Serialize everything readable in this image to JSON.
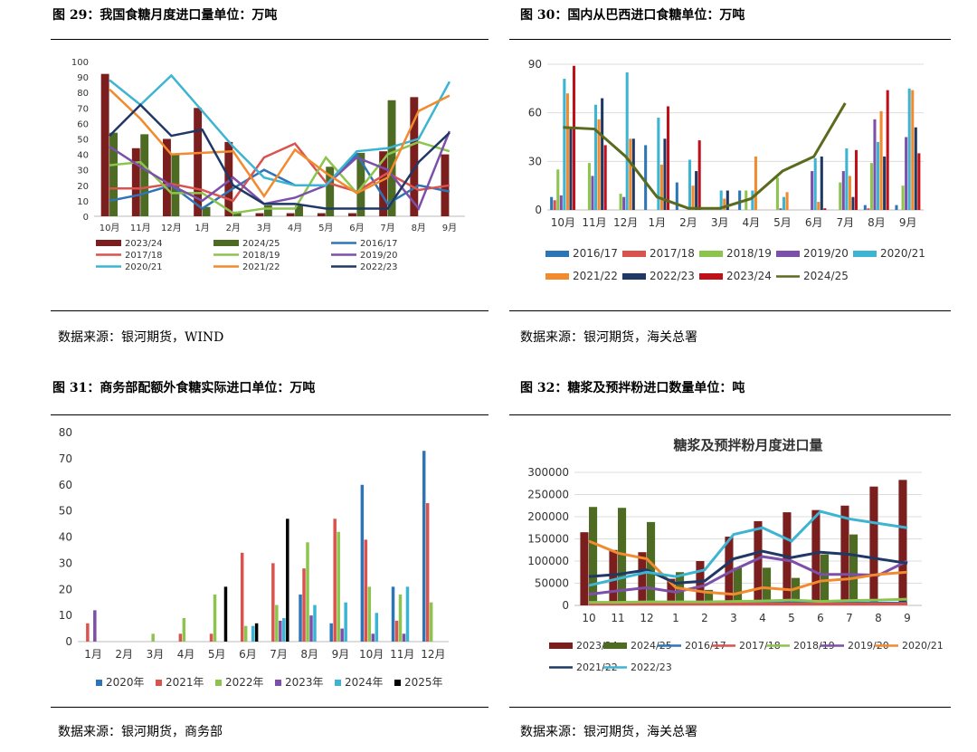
{
  "panels": {
    "p29": {
      "title": "图 29：我国食糖月度进口量单位：万吨",
      "source": "数据来源：银河期货，WIND"
    },
    "p30": {
      "title": "图 30：国内从巴西进口食糖单位：万吨",
      "source": "数据来源：银河期货，海关总署"
    },
    "p31": {
      "title": "图 31：商务部配额外食糖实际进口单位：万吨",
      "source": "数据来源：银河期货，商务部"
    },
    "p32": {
      "title": "图 32：糖浆及预拌粉进口数量单位：吨",
      "source": "数据来源：银河期货，海关总署"
    }
  },
  "chart_data": [
    {
      "id": "c29",
      "type": "bar+line",
      "categories": [
        "10月",
        "11月",
        "12月",
        "1月",
        "2月",
        "3月",
        "4月",
        "5月",
        "6月",
        "7月",
        "8月",
        "9月"
      ],
      "ylim": [
        0,
        100
      ],
      "yticks": [
        0,
        10,
        20,
        30,
        40,
        50,
        60,
        70,
        80,
        90,
        100
      ],
      "series": [
        {
          "name": "2023/24",
          "kind": "bar",
          "color": "#7b1e1e",
          "values": [
            92,
            44,
            50,
            70,
            48,
            2,
            2,
            2,
            2,
            42,
            77,
            40
          ]
        },
        {
          "name": "2024/25",
          "kind": "bar",
          "color": "#4e6b24",
          "values": [
            54,
            53,
            40,
            6,
            3,
            7,
            7,
            32,
            41,
            75,
            null,
            null
          ]
        },
        {
          "name": "2016/17",
          "kind": "line",
          "color": "#2e75b6",
          "values": [
            10,
            14,
            20,
            5,
            18,
            30,
            20,
            20,
            40,
            8,
            20,
            16
          ]
        },
        {
          "name": "2017/18",
          "kind": "line",
          "color": "#d9534f",
          "values": [
            18,
            18,
            21,
            17,
            10,
            38,
            47,
            22,
            16,
            28,
            17,
            20
          ]
        },
        {
          "name": "2018/19",
          "kind": "line",
          "color": "#8dc44e",
          "values": [
            33,
            35,
            15,
            15,
            2,
            5,
            5,
            38,
            15,
            40,
            48,
            42
          ]
        },
        {
          "name": "2019/20",
          "kind": "line",
          "color": "#7c4fa8",
          "values": [
            45,
            32,
            20,
            10,
            25,
            8,
            12,
            20,
            38,
            30,
            5,
            55
          ]
        },
        {
          "name": "2020/21",
          "kind": "line",
          "color": "#3cb4d2",
          "values": [
            88,
            72,
            91,
            68,
            45,
            25,
            20,
            20,
            42,
            44,
            50,
            87
          ]
        },
        {
          "name": "2021/22",
          "kind": "line",
          "color": "#f28a2e",
          "values": [
            82,
            63,
            40,
            41,
            42,
            13,
            43,
            28,
            15,
            25,
            68,
            78
          ]
        },
        {
          "name": "2022/23",
          "kind": "line",
          "color": "#1f3864",
          "values": [
            52,
            72,
            52,
            56,
            20,
            8,
            8,
            5,
            5,
            5,
            35,
            54
          ]
        }
      ]
    },
    {
      "id": "c30",
      "type": "bar+line",
      "categories": [
        "10月",
        "11月",
        "12月",
        "1月",
        "2月",
        "3月",
        "4月",
        "5月",
        "6月",
        "7月",
        "8月",
        "9月"
      ],
      "ylim": [
        0,
        90
      ],
      "yticks": [
        0,
        30,
        60,
        90
      ],
      "series": [
        {
          "name": "2016/17",
          "kind": "bar",
          "color": "#2e75b6",
          "values": [
            8,
            0,
            0,
            40,
            17,
            0,
            12,
            0,
            0,
            0,
            3,
            3
          ]
        },
        {
          "name": "2017/18",
          "kind": "bar",
          "color": "#d9534f",
          "values": [
            6,
            0,
            0,
            0,
            0,
            0,
            0,
            0,
            0,
            0,
            1,
            0
          ]
        },
        {
          "name": "2018/19",
          "kind": "bar",
          "color": "#8dc44e",
          "values": [
            25,
            29,
            10,
            0,
            0,
            0,
            12,
            20,
            0,
            17,
            29,
            15
          ]
        },
        {
          "name": "2019/20",
          "kind": "bar",
          "color": "#7c4fa8",
          "values": [
            9,
            21,
            8,
            0,
            0,
            0,
            0,
            1,
            24,
            24,
            56,
            45
          ]
        },
        {
          "name": "2020/21",
          "kind": "bar",
          "color": "#3cb4d2",
          "values": [
            81,
            65,
            85,
            57,
            31,
            12,
            12,
            8,
            32,
            38,
            42,
            75
          ]
        },
        {
          "name": "2021/22",
          "kind": "bar",
          "color": "#f28a2e",
          "values": [
            72,
            56,
            44,
            28,
            15,
            7,
            33,
            11,
            5,
            21,
            61,
            74
          ]
        },
        {
          "name": "2022/23",
          "kind": "bar",
          "color": "#1f3864",
          "values": [
            50,
            69,
            44,
            44,
            24,
            12,
            0,
            0,
            33,
            8,
            33,
            51
          ]
        },
        {
          "name": "2023/24",
          "kind": "bar",
          "color": "#c0101a",
          "values": [
            89,
            40,
            0,
            64,
            43,
            0,
            0,
            0,
            1,
            37,
            74,
            35
          ]
        },
        {
          "name": "2024/25",
          "kind": "line",
          "color": "#5b6b1e",
          "values": [
            51,
            50,
            33,
            8,
            1,
            1,
            7,
            24,
            33,
            66,
            null,
            null
          ]
        }
      ]
    },
    {
      "id": "c31",
      "type": "bar",
      "categories": [
        "1月",
        "2月",
        "3月",
        "4月",
        "5月",
        "6月",
        "7月",
        "8月",
        "9月",
        "10月",
        "11月",
        "12月"
      ],
      "ylim": [
        0,
        80
      ],
      "yticks": [
        0,
        10,
        20,
        30,
        40,
        50,
        60,
        70,
        80
      ],
      "series": [
        {
          "name": "2020年",
          "color": "#2e75b6",
          "values": [
            0,
            0,
            0,
            0,
            0,
            0,
            0,
            18,
            7,
            60,
            21,
            73
          ]
        },
        {
          "name": "2021年",
          "color": "#d9534f",
          "values": [
            7,
            0,
            0,
            3,
            3,
            34,
            30,
            28,
            47,
            39,
            8,
            53
          ]
        },
        {
          "name": "2022年",
          "color": "#8dc44e",
          "values": [
            0,
            0,
            3,
            9,
            18,
            6,
            14,
            38,
            42,
            21,
            18,
            15
          ]
        },
        {
          "name": "2023年",
          "color": "#7c4fa8",
          "values": [
            12,
            0,
            0,
            0,
            0,
            0,
            8,
            10,
            5,
            3,
            3,
            0
          ]
        },
        {
          "name": "2024年",
          "color": "#3cb4d2",
          "values": [
            0,
            0,
            0,
            0,
            0,
            6,
            9,
            14,
            15,
            11,
            21,
            0
          ]
        },
        {
          "name": "2025年",
          "color": "#000000",
          "values": [
            0,
            0,
            0,
            0,
            21,
            7,
            47,
            0,
            0,
            0,
            0,
            0
          ]
        }
      ]
    },
    {
      "id": "c32",
      "type": "bar+line",
      "title": "糖浆及预拌粉月度进口量",
      "categories": [
        "10",
        "11",
        "12",
        "1",
        "2",
        "3",
        "4",
        "5",
        "6",
        "7",
        "8",
        "9"
      ],
      "ylim": [
        0,
        300000
      ],
      "yticks": [
        0,
        50000,
        100000,
        150000,
        200000,
        250000,
        300000
      ],
      "series": [
        {
          "name": "2023/24",
          "kind": "bar",
          "color": "#7b1e1e",
          "values": [
            165000,
            125000,
            120000,
            60000,
            100000,
            155000,
            190000,
            210000,
            215000,
            225000,
            268000,
            283000
          ]
        },
        {
          "name": "2024/25",
          "kind": "bar",
          "color": "#4e6b24",
          "values": [
            222000,
            220000,
            188000,
            75000,
            35000,
            85000,
            85000,
            62000,
            115000,
            160000,
            null,
            null
          ]
        },
        {
          "name": "2016/17",
          "kind": "line",
          "color": "#2e75b6",
          "values": [
            5000,
            5000,
            5000,
            5000,
            5000,
            5000,
            5000,
            5000,
            5000,
            5000,
            5000,
            5000
          ]
        },
        {
          "name": "2017/18",
          "kind": "line",
          "color": "#d9534f",
          "values": [
            3000,
            3000,
            3000,
            3000,
            3000,
            3000,
            3000,
            3000,
            3000,
            3000,
            3000,
            3000
          ]
        },
        {
          "name": "2018/19",
          "kind": "line",
          "color": "#8dc44e",
          "values": [
            7000,
            7000,
            8000,
            8000,
            8000,
            9000,
            10000,
            12000,
            9000,
            11000,
            12000,
            14000
          ]
        },
        {
          "name": "2019/20",
          "kind": "line",
          "color": "#7c4fa8",
          "values": [
            25000,
            33000,
            40000,
            30000,
            45000,
            80000,
            110000,
            100000,
            70000,
            70000,
            68000,
            100000
          ]
        },
        {
          "name": "2020/21",
          "kind": "line",
          "color": "#f28a2e",
          "values": [
            145000,
            118000,
            105000,
            40000,
            30000,
            25000,
            40000,
            35000,
            55000,
            60000,
            70000,
            75000
          ]
        },
        {
          "name": "2021/22",
          "kind": "line",
          "color": "#1f3864",
          "values": [
            65000,
            70000,
            80000,
            50000,
            55000,
            105000,
            122000,
            108000,
            120000,
            115000,
            105000,
            95000
          ]
        },
        {
          "name": "2022/23",
          "kind": "line",
          "color": "#3cb4d2",
          "values": [
            45000,
            60000,
            75000,
            65000,
            80000,
            160000,
            175000,
            145000,
            212000,
            195000,
            185000,
            175000
          ]
        }
      ]
    }
  ]
}
